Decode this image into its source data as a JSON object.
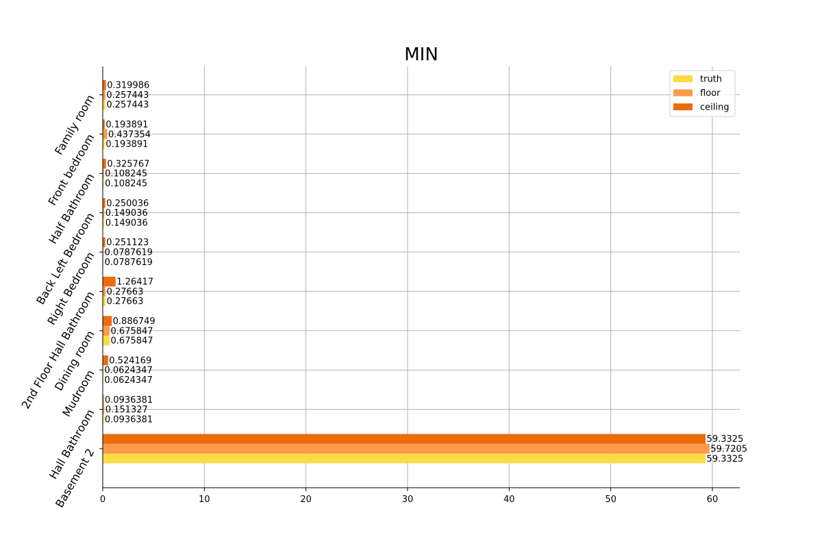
{
  "chart_data": {
    "type": "bar",
    "orientation": "horizontal",
    "title": "MIN",
    "xlabel": "",
    "ylabel": "",
    "xlim": [
      0,
      62.7
    ],
    "xticks": [
      0,
      10,
      20,
      30,
      40,
      50,
      60
    ],
    "xtick_labels": [
      "0",
      "10",
      "20",
      "30",
      "40",
      "50",
      "60"
    ],
    "categories": [
      "Family room",
      "Front bedroom",
      "Half Bathroom",
      "Back Left Bedroom",
      "Right Bedroom",
      "2nd Floor Hall Bathroom",
      "Dining room",
      "Mudroom",
      "Hall Bathroom",
      "Basement 2"
    ],
    "series": [
      {
        "name": "truth",
        "color": "#fbdc45",
        "values": [
          0.257443,
          0.193891,
          0.108245,
          0.149036,
          0.0787619,
          0.27663,
          0.675847,
          0.0624347,
          0.0936381,
          59.3325
        ],
        "labels": [
          "0.257443",
          "0.193891",
          "0.108245",
          "0.149036",
          "0.0787619",
          "0.27663",
          "0.675847",
          "0.0624347",
          "0.0936381",
          "59.3325"
        ]
      },
      {
        "name": "floor",
        "color": "#fb9a48",
        "values": [
          0.257443,
          0.437354,
          0.108245,
          0.149036,
          0.0787619,
          0.27663,
          0.675847,
          0.0624347,
          0.151327,
          59.7205
        ],
        "labels": [
          "0.257443",
          "0.437354",
          "0.108245",
          "0.149036",
          "0.0787619",
          "0.27663",
          "0.675847",
          "0.0624347",
          "0.151327",
          "59.7205"
        ]
      },
      {
        "name": "ceiling",
        "color": "#ec6c0c",
        "values": [
          0.319986,
          0.193891,
          0.325767,
          0.250036,
          0.251123,
          1.26417,
          0.886749,
          0.524169,
          0.0936381,
          59.3325
        ],
        "labels": [
          "0.319986",
          "0.193891",
          "0.325767",
          "0.250036",
          "0.251123",
          "1.26417",
          "0.886749",
          "0.524169",
          "0.0936381",
          "59.3325"
        ]
      }
    ],
    "legend_position": "top-right",
    "grid": true,
    "axis_spines": [
      "left",
      "bottom"
    ]
  }
}
